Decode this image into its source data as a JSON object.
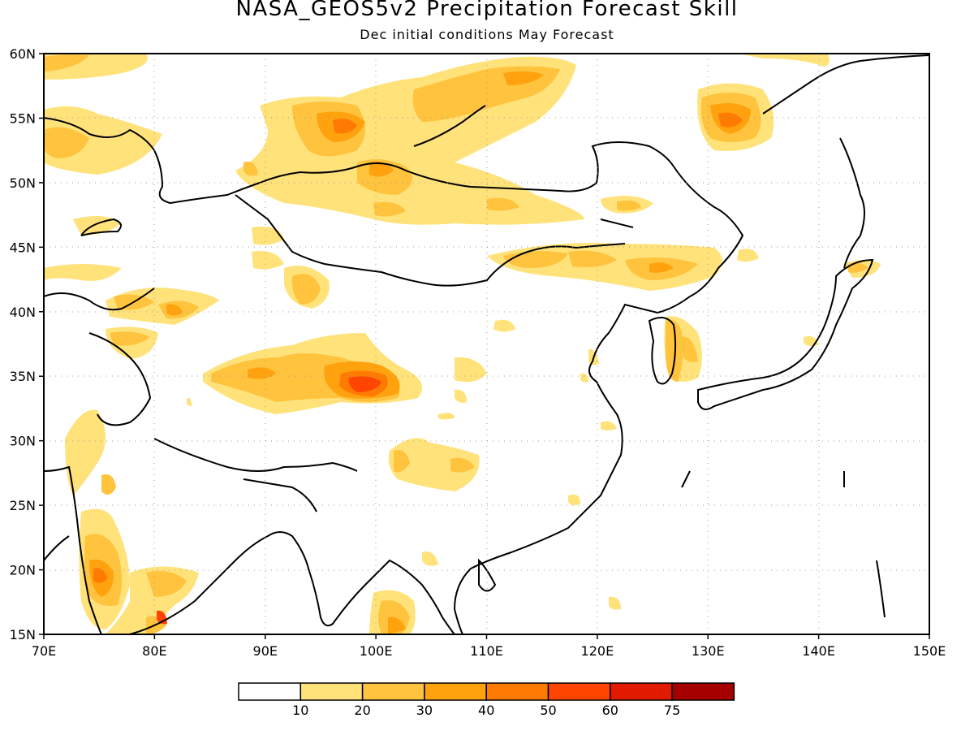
{
  "title": "NASA_GEOS5v2 Precipitation Forecast Skill",
  "subtitle": "Dec initial conditions   May Forecast",
  "map": {
    "lon_range": [
      70,
      150
    ],
    "lat_range": [
      15,
      60
    ],
    "lon_labels": [
      "70E",
      "80E",
      "90E",
      "100E",
      "110E",
      "120E",
      "130E",
      "140E",
      "150E"
    ],
    "lat_labels": [
      "15N",
      "20N",
      "25N",
      "30N",
      "35N",
      "40N",
      "45N",
      "50N",
      "55N",
      "60N"
    ],
    "grid": "dotted"
  },
  "colorbar": {
    "labels": [
      "10",
      "20",
      "30",
      "40",
      "50",
      "60",
      "75"
    ],
    "colors": [
      "#ffffff",
      "#ffe27a",
      "#ffc33d",
      "#ffa20e",
      "#ff7a00",
      "#ff4500",
      "#e11a00",
      "#a50000"
    ]
  }
}
